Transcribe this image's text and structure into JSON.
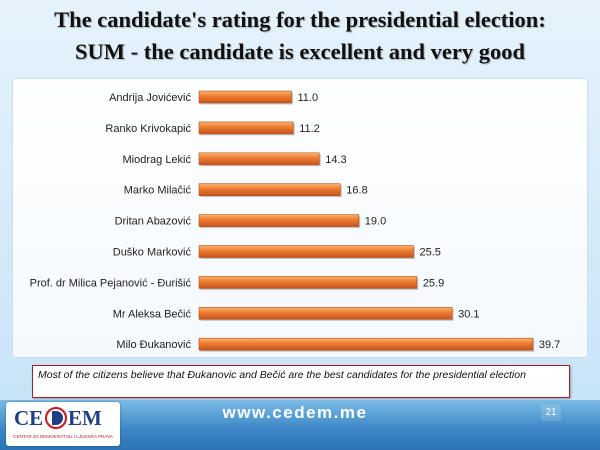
{
  "slide": {
    "title_lines": [
      "The candidate's rating for the presidential election:",
      "SUM - the candidate is excellent and very good"
    ],
    "page_number": "21"
  },
  "chart_data": {
    "type": "bar",
    "orientation": "horizontal",
    "categories": [
      "Andrija Jovićević",
      "Ranko Krivokapić",
      "Miodrag Lekić",
      "Marko Milačić",
      "Dritan Abazović",
      "Duško Marković",
      "Prof. dr Milica Pejanović - Đurišić",
      "Mr Aleksa Bečić",
      "Milo Đukanović"
    ],
    "values": [
      11.0,
      11.2,
      14.3,
      16.8,
      19.0,
      25.5,
      25.9,
      30.1,
      39.7
    ],
    "data_labels": [
      "11.0",
      "11.2",
      "14.3",
      "16.8",
      "19.0",
      "25.5",
      "25.9",
      "30.1",
      "39.7"
    ],
    "bar_color": "#ec7a2f",
    "grid": false,
    "legend": "none",
    "value_axis_visible": false
  },
  "note": {
    "text": "Most of the citizens believe that Đukanovic and Bečić are the best candidates for the presidential election"
  },
  "footer": {
    "website": "www.cedem.me"
  },
  "logo": {
    "left": "CE",
    "right": "EM",
    "tagline": "CENTAR ZA DEMOKRATIJU I LJUDSKA PRAVA"
  }
}
